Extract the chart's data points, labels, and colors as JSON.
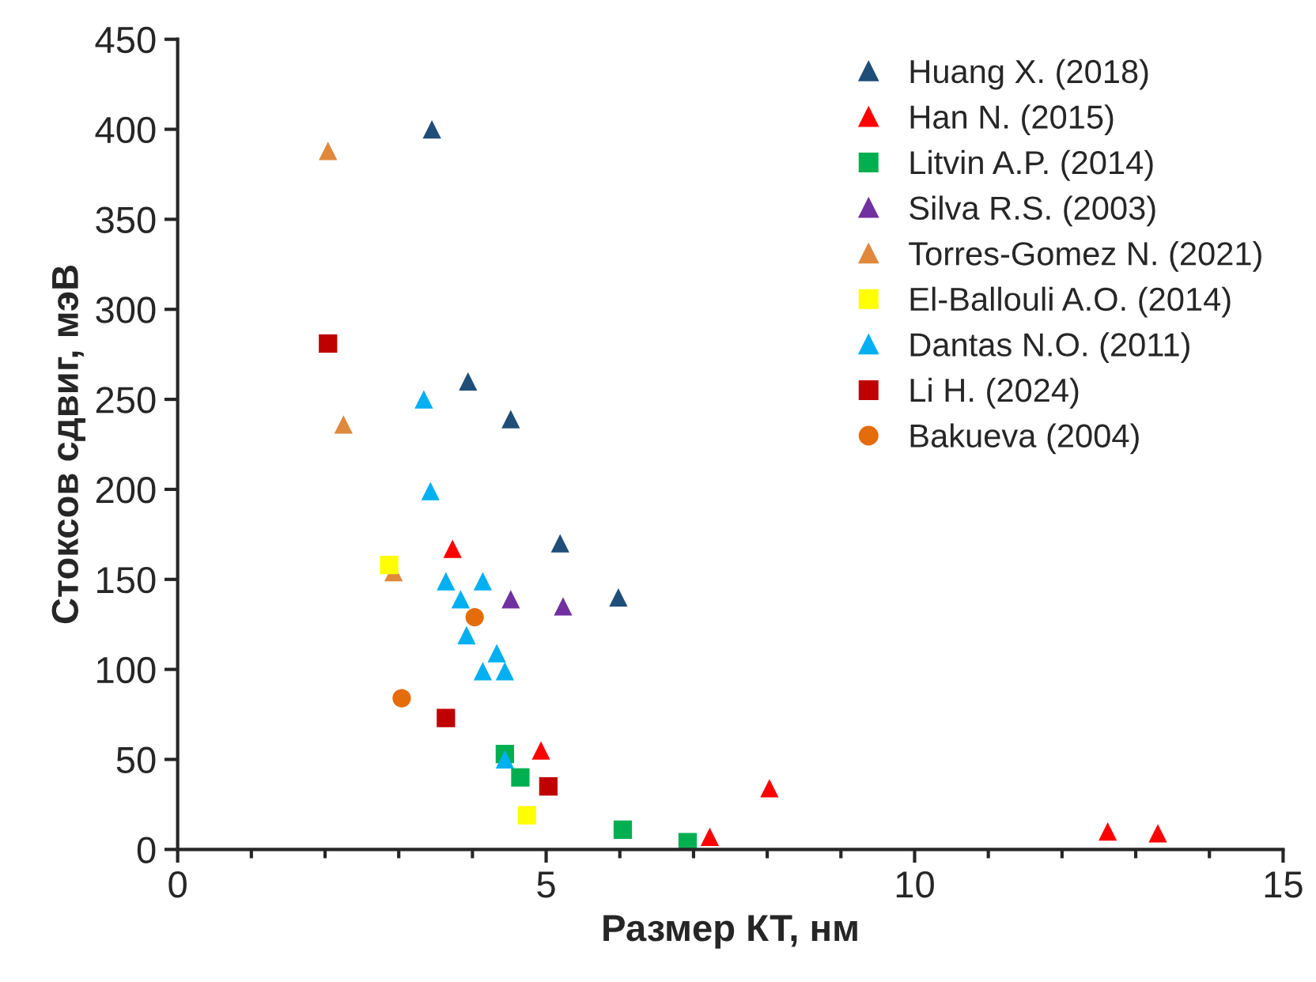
{
  "chart_data": {
    "type": "scatter",
    "xlabel": "Размер КТ, нм",
    "ylabel": "Стоксов сдвиг, мэВ",
    "xlim": [
      0,
      15
    ],
    "xticks": [
      0,
      5,
      10,
      15
    ],
    "ylim": [
      0,
      450
    ],
    "yticks": [
      0,
      50,
      100,
      150,
      200,
      250,
      300,
      350,
      400,
      450
    ],
    "grid": false,
    "legend": "top right",
    "series": [
      {
        "name": "Huang X. (2018)",
        "color": "#1f4e79",
        "marker": "triangle",
        "x": [
          3.45,
          3.94,
          4.52,
          5.19,
          5.98
        ],
        "values": [
          400,
          260,
          239,
          170,
          140
        ]
      },
      {
        "name": "Han N. (2015)",
        "color": "#ff0000",
        "marker": "triangle",
        "x": [
          3.73,
          4.93,
          8.03,
          7.22,
          12.62,
          13.3
        ],
        "values": [
          167,
          55,
          34,
          7,
          10,
          9
        ]
      },
      {
        "name": "Litvin A.P. (2014)",
        "color": "#00b050",
        "marker": "square",
        "x": [
          4.44,
          4.65,
          6.04,
          6.92
        ],
        "values": [
          53,
          40,
          11,
          4
        ]
      },
      {
        "name": "Silva R.S. (2003)",
        "color": "#7030a0",
        "marker": "triangle",
        "x": [
          4.52,
          5.23
        ],
        "values": [
          139,
          135
        ]
      },
      {
        "name": "Torres-Gomez N. (2021)",
        "color": "#e0883c",
        "marker": "triangle",
        "x": [
          2.04,
          2.25,
          2.93
        ],
        "values": [
          388,
          236,
          154
        ]
      },
      {
        "name": "El-Ballouli A.O. (2014)",
        "color": "#ffff00",
        "marker": "square",
        "x": [
          2.87,
          4.74
        ],
        "values": [
          158,
          19
        ]
      },
      {
        "name": "Dantas N.O. (2011)",
        "color": "#00b0f0",
        "marker": "triangle",
        "x": [
          3.34,
          3.43,
          3.64,
          4.14,
          3.84,
          3.92,
          4.33,
          4.14,
          4.44,
          4.44
        ],
        "values": [
          250,
          199,
          149,
          149,
          139,
          119,
          109,
          99,
          99,
          50
        ]
      },
      {
        "name": "Li H. (2024)",
        "color": "#c00000",
        "marker": "square",
        "x": [
          2.04,
          3.64,
          5.03
        ],
        "values": [
          281,
          73,
          35
        ]
      },
      {
        "name": "Bakueva (2004)",
        "color": "#e46c0a",
        "marker": "circle",
        "x": [
          4.03,
          3.04
        ],
        "values": [
          129,
          84
        ]
      }
    ]
  }
}
